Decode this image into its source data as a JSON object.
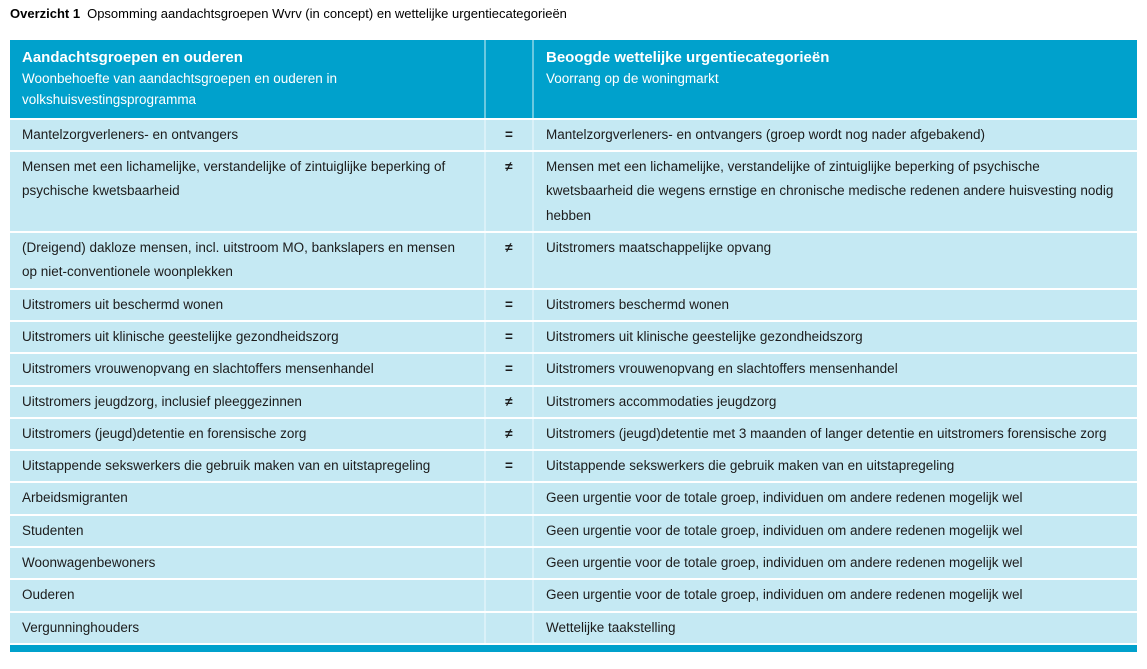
{
  "caption": {
    "label": "Overzicht 1",
    "text": "Opsomming aandachtsgroepen Wvrv (in concept) en wettelijke urgentiecategorieën"
  },
  "table": {
    "header": {
      "left_title": "Aandachtsgroepen en ouderen",
      "left_subtitle": "Woonbehoefte van aandachtsgroepen en ouderen in volkshuisvestingsprogramma",
      "symbol_column": "",
      "right_title": "Beoogde wettelijke urgentiecategorieën",
      "right_subtitle": "Voorrang op de woningmarkt"
    },
    "rows": [
      {
        "left": "Mantelzorgverleners- en ontvangers",
        "symbol": "=",
        "right": "Mantelzorgverleners- en ontvangers (groep wordt nog nader afgebakend)"
      },
      {
        "left": "Mensen met een lichamelijke, verstandelijke of zintuiglijke beperking of psychische kwetsbaarheid",
        "symbol": "≠",
        "right": "Mensen met een lichamelijke, verstandelijke of zintuiglijke beperking of psychische kwetsbaarheid die wegens ernstige en chronische medische redenen andere huisvesting nodig hebben"
      },
      {
        "left": "(Dreigend) dakloze mensen, incl. uitstroom MO, bankslapers en mensen op niet-conventionele woonplekken",
        "symbol": "≠",
        "right": "Uitstromers maatschappelijke opvang"
      },
      {
        "left": "Uitstromers uit beschermd wonen",
        "symbol": "=",
        "right": "Uitstromers beschermd wonen"
      },
      {
        "left": "Uitstromers uit klinische geestelijke gezondheidszorg",
        "symbol": "=",
        "right": "Uitstromers uit klinische geestelijke gezondheidszorg"
      },
      {
        "left": "Uitstromers vrouwenopvang en slachtoffers mensenhandel",
        "symbol": "=",
        "right": "Uitstromers vrouwenopvang en slachtoffers mensenhandel"
      },
      {
        "left": "Uitstromers jeugdzorg, inclusief pleeggezinnen",
        "symbol": "≠",
        "right": "Uitstromers accommodaties jeugdzorg"
      },
      {
        "left": "Uitstromers (jeugd)detentie en forensische zorg",
        "symbol": "≠",
        "right": "Uitstromers (jeugd)detentie met 3 maanden of langer detentie en uitstromers forensische zorg"
      },
      {
        "left": "Uitstappende sekswerkers die gebruik maken van en uitstapregeling",
        "symbol": "=",
        "right": "Uitstappende sekswerkers die gebruik maken van en uitstapregeling"
      },
      {
        "left": "Arbeidsmigranten",
        "symbol": "",
        "right": "Geen urgentie voor de totale groep, individuen om andere redenen mogelijk wel"
      },
      {
        "left": "Studenten",
        "symbol": "",
        "right": "Geen urgentie voor de totale groep, individuen om andere redenen mogelijk wel"
      },
      {
        "left": "Woonwagenbewoners",
        "symbol": "",
        "right": "Geen urgentie voor de totale groep, individuen om andere redenen mogelijk wel"
      },
      {
        "left": "Ouderen",
        "symbol": "",
        "right": "Geen urgentie voor de totale groep, individuen om andere redenen mogelijk wel"
      },
      {
        "left": "Vergunninghouders",
        "symbol": "",
        "right": "Wettelijke taakstelling"
      }
    ]
  },
  "colors": {
    "header_bg": "#00a1cc",
    "header_divider": "#6ac9e0",
    "row_bg": "#c5e9f3",
    "row_divider": "#daf1f8",
    "header_text": "#ffffff",
    "body_text": "#1c1c1c",
    "page_bg": "#ffffff"
  }
}
